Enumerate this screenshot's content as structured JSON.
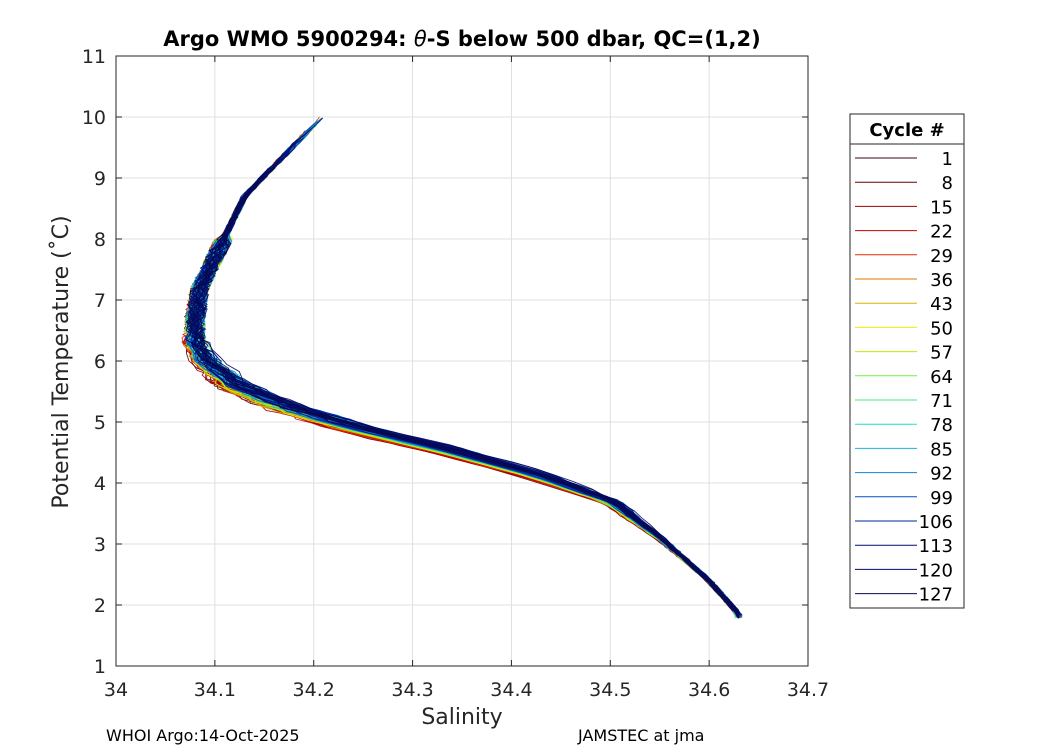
{
  "chart_data": {
    "type": "line",
    "title_prefix": "Argo WMO 5900294: ",
    "title_theta": "θ",
    "title_suffix": "-S below 500 dbar,  QC=(1,2)",
    "xlabel": "Salinity",
    "ylabel": "Potential Temperature (˚C)",
    "xlim": [
      34,
      34.7
    ],
    "ylim": [
      1,
      11
    ],
    "xticks": [
      "34",
      "34.1",
      "34.2",
      "34.3",
      "34.4",
      "34.5",
      "34.6",
      "34.7"
    ],
    "yticks": [
      "1",
      "2",
      "3",
      "4",
      "5",
      "6",
      "7",
      "8",
      "9",
      "10",
      "11"
    ],
    "grid": true,
    "legend_title": "Cycle #",
    "legend_position": "right",
    "legend_entries": [
      {
        "label": "1",
        "color": "#3a0a14"
      },
      {
        "label": "8",
        "color": "#6b0000"
      },
      {
        "label": "15",
        "color": "#9a0000"
      },
      {
        "label": "22",
        "color": "#c80000"
      },
      {
        "label": "29",
        "color": "#e62a00"
      },
      {
        "label": "36",
        "color": "#e07400"
      },
      {
        "label": "43",
        "color": "#e0b000"
      },
      {
        "label": "50",
        "color": "#f0ee00"
      },
      {
        "label": "57",
        "color": "#b8f000"
      },
      {
        "label": "64",
        "color": "#6ef03c"
      },
      {
        "label": "71",
        "color": "#3cf07a"
      },
      {
        "label": "78",
        "color": "#1ee0c0"
      },
      {
        "label": "85",
        "color": "#14b4e6"
      },
      {
        "label": "92",
        "color": "#0a84d2"
      },
      {
        "label": "99",
        "color": "#0050c8"
      },
      {
        "label": "106",
        "color": "#0024a0"
      },
      {
        "label": "113",
        "color": "#000c78"
      },
      {
        "label": "120",
        "color": "#000a60"
      },
      {
        "label": "127",
        "color": "#0a0a50"
      }
    ],
    "reference_profile": {
      "salinity": [
        34.22,
        34.19,
        34.16,
        34.13,
        34.115,
        34.1,
        34.085,
        34.08,
        34.08,
        34.09,
        34.12,
        34.17,
        34.24,
        34.33,
        34.42,
        34.5,
        34.55,
        34.6,
        34.63
      ],
      "theta": [
        10.2,
        9.7,
        9.2,
        8.7,
        8.2,
        7.7,
        7.2,
        6.7,
        6.3,
        6.0,
        5.6,
        5.25,
        4.9,
        4.55,
        4.15,
        3.7,
        3.1,
        2.4,
        1.85
      ]
    }
  },
  "footer": {
    "left": "WHOI Argo:14-Oct-2025",
    "right": "JAMSTEC at jma"
  }
}
